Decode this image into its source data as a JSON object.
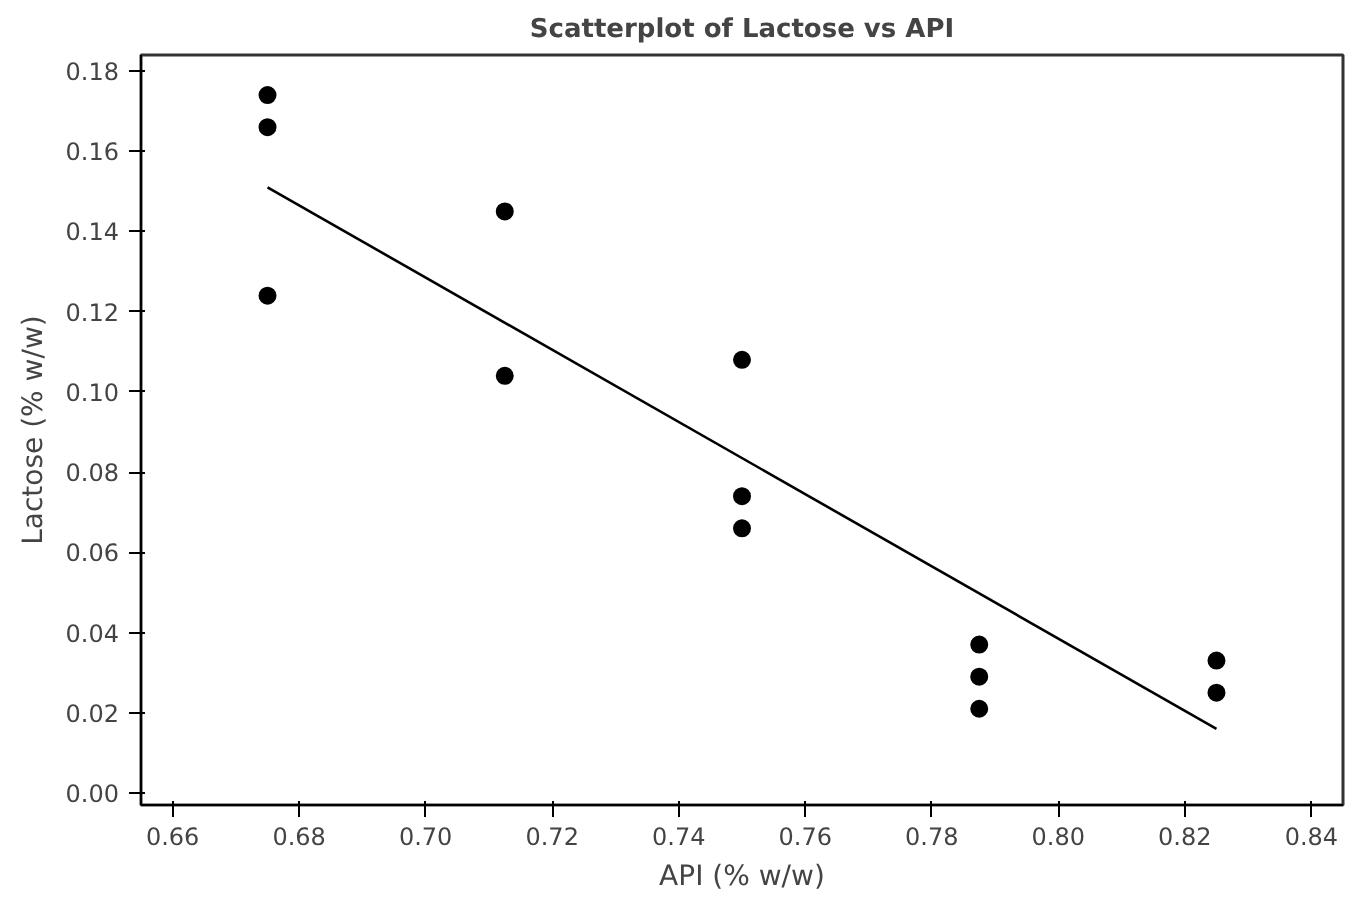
{
  "chart_data": {
    "type": "scatter",
    "title": "Scatterplot of Lactose vs API",
    "xlabel": "API (% w/w)",
    "ylabel": "Lactose (% w/w)",
    "xlim": [
      0.655,
      0.845
    ],
    "ylim": [
      -0.003,
      0.184
    ],
    "xticks": [
      0.66,
      0.68,
      {
        "value": 0.7,
        "label": "0.70"
      },
      0.72,
      0.74,
      0.76,
      0.78,
      {
        "value": 0.8,
        "label": "0.80"
      },
      0.82,
      0.84
    ],
    "yticks": [
      {
        "value": 0,
        "label": "0.00"
      },
      0.02,
      0.04,
      0.06,
      0.08,
      {
        "value": 0.1,
        "label": "0.10"
      },
      0.12,
      0.14,
      0.16,
      0.18
    ],
    "grid": false,
    "series": [
      {
        "color": "#000000",
        "marker": "circle",
        "x": [
          0.675,
          0.675,
          0.675,
          0.7125,
          0.7125,
          0.75,
          0.75,
          0.75,
          0.7875,
          0.7875,
          0.7875,
          0.825,
          0.825
        ],
        "values": [
          0.174,
          0.166,
          0.124,
          0.145,
          0.104,
          0.108,
          0.074,
          0.066,
          0.037,
          0.029,
          0.021,
          0.033,
          0.025
        ]
      },
      {
        "type": "line",
        "color": "#000000",
        "marker": "none",
        "line_style": "solid",
        "x": [
          0.675,
          0.825
        ],
        "values": [
          0.151,
          0.016
        ]
      }
    ]
  }
}
